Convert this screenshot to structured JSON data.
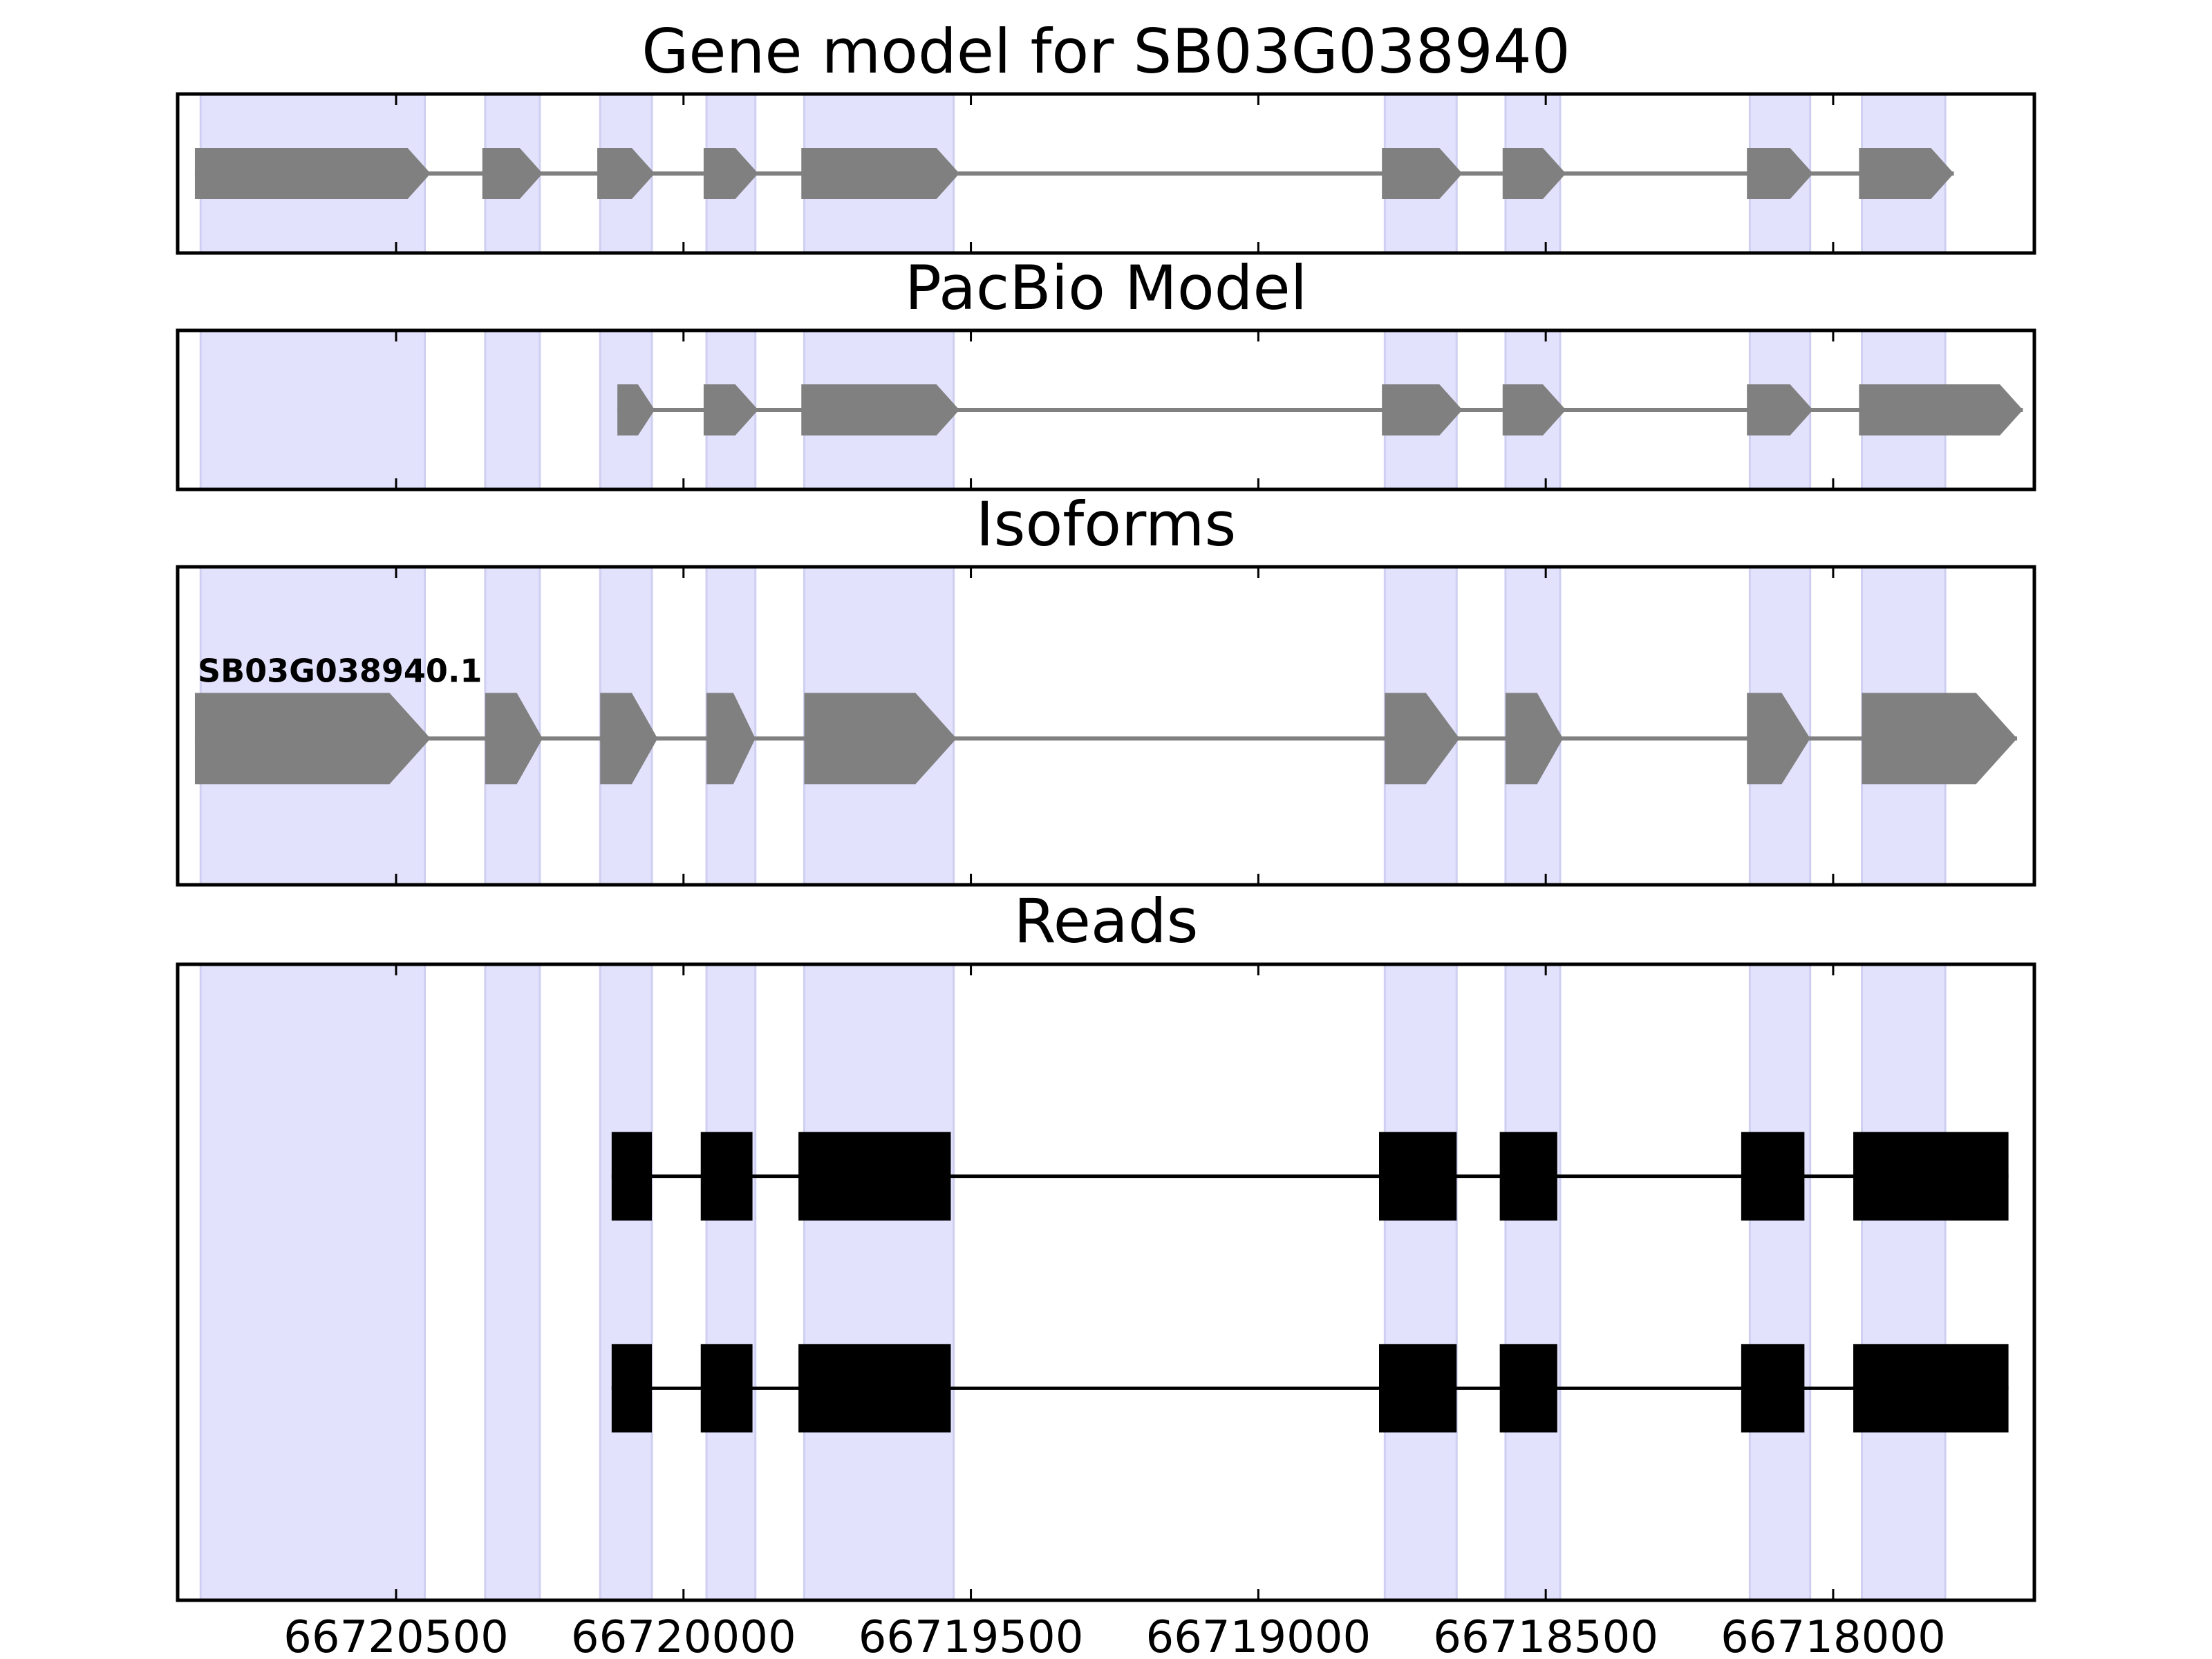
{
  "chart_data": {
    "type": "gene-structure",
    "x_axis": {
      "reversed": true,
      "xlim": [
        66720880,
        66717650
      ],
      "ticks": [
        66720500,
        66720000,
        66719500,
        66719000,
        66718500,
        66718000
      ],
      "tick_labels": [
        "66720500",
        "66720000",
        "66719500",
        "66719000",
        "66718500",
        "66718000"
      ]
    },
    "exon_highlights": [
      [
        66720840,
        66720450
      ],
      [
        66720345,
        66720250
      ],
      [
        66720145,
        66720055
      ],
      [
        66719960,
        66719875
      ],
      [
        66719790,
        66719530
      ],
      [
        66718780,
        66718655
      ],
      [
        66718570,
        66718475
      ],
      [
        66718145,
        66718040
      ],
      [
        66717950,
        66717805
      ]
    ],
    "colors": {
      "highlight": "#e2e2fc",
      "model": "#808080",
      "reads": "#000000"
    },
    "panels": [
      {
        "title": "Gene model for SB03G038940",
        "kind": "model",
        "rows": [
          {
            "label": "",
            "exons": [
              [
                66720850,
                66720440
              ],
              [
                66720350,
                66720245
              ],
              [
                66720150,
                66720050
              ],
              [
                66719965,
                66719870
              ],
              [
                66719795,
                66719520
              ],
              [
                66718785,
                66718645
              ],
              [
                66718575,
                66718465
              ],
              [
                66718150,
                66718035
              ],
              [
                66717955,
                66717790
              ]
            ]
          }
        ]
      },
      {
        "title": "PacBio Model",
        "kind": "model",
        "rows": [
          {
            "label": "",
            "exons": [
              [
                66720115,
                66720050
              ],
              [
                66719965,
                66719870
              ],
              [
                66719795,
                66719520
              ],
              [
                66718785,
                66718645
              ],
              [
                66718575,
                66718465
              ],
              [
                66718150,
                66718035
              ],
              [
                66717955,
                66717670
              ]
            ]
          }
        ]
      },
      {
        "title": "Isoforms",
        "kind": "model",
        "rows": [
          {
            "label": "SB03G038940.1",
            "exons": [
              [
                66720850,
                66720440
              ],
              [
                66720345,
                66720245
              ],
              [
                66720145,
                66720045
              ],
              [
                66719960,
                66719875
              ],
              [
                66719790,
                66719525
              ],
              [
                66718780,
                66718650
              ],
              [
                66718570,
                66718470
              ],
              [
                66718150,
                66718040
              ],
              [
                66717950,
                66717680
              ]
            ]
          }
        ]
      },
      {
        "title": "Reads",
        "kind": "reads",
        "rows": [
          {
            "label": "",
            "exons": [
              [
                66720125,
                66720055
              ],
              [
                66719970,
                66719880
              ],
              [
                66719800,
                66719535
              ],
              [
                66718790,
                66718655
              ],
              [
                66718580,
                66718480
              ],
              [
                66718160,
                66718050
              ],
              [
                66717965,
                66717695
              ]
            ]
          },
          {
            "label": "",
            "exons": [
              [
                66720125,
                66720055
              ],
              [
                66719970,
                66719880
              ],
              [
                66719800,
                66719535
              ],
              [
                66718790,
                66718655
              ],
              [
                66718580,
                66718480
              ],
              [
                66718160,
                66718050
              ],
              [
                66717965,
                66717695
              ]
            ]
          }
        ]
      }
    ]
  }
}
